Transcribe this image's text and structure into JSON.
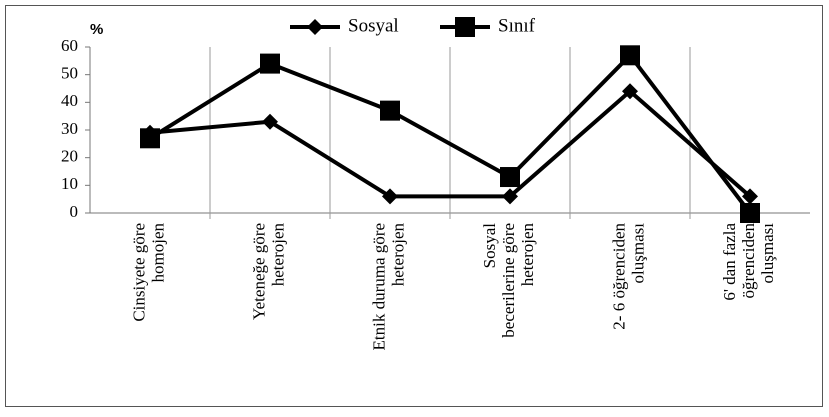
{
  "chart_data": {
    "type": "line",
    "y_label": "%",
    "categories": [
      "Cinsiyete göre\nhomojen",
      "Yeteneğe göre\nheterojen",
      "Etnik duruma göre\nheterojen",
      "Sosyal\nbecerilerine göre\nheterojen",
      "2- 6 öğrenciden\noluşması",
      "6' dan fazla\nöğrenciden\noluşması"
    ],
    "series": [
      {
        "name": "Sosyal",
        "color": "#000000",
        "marker": "diamond",
        "values": [
          29,
          33,
          6,
          6,
          44,
          6
        ]
      },
      {
        "name": "Sınıf",
        "color": "#000000",
        "marker": "square",
        "values": [
          27,
          54,
          37,
          13,
          57,
          0
        ]
      }
    ],
    "ylim": [
      0,
      60
    ],
    "yticks": [
      0,
      10,
      20,
      30,
      40,
      50,
      60
    ],
    "legend": "top"
  }
}
